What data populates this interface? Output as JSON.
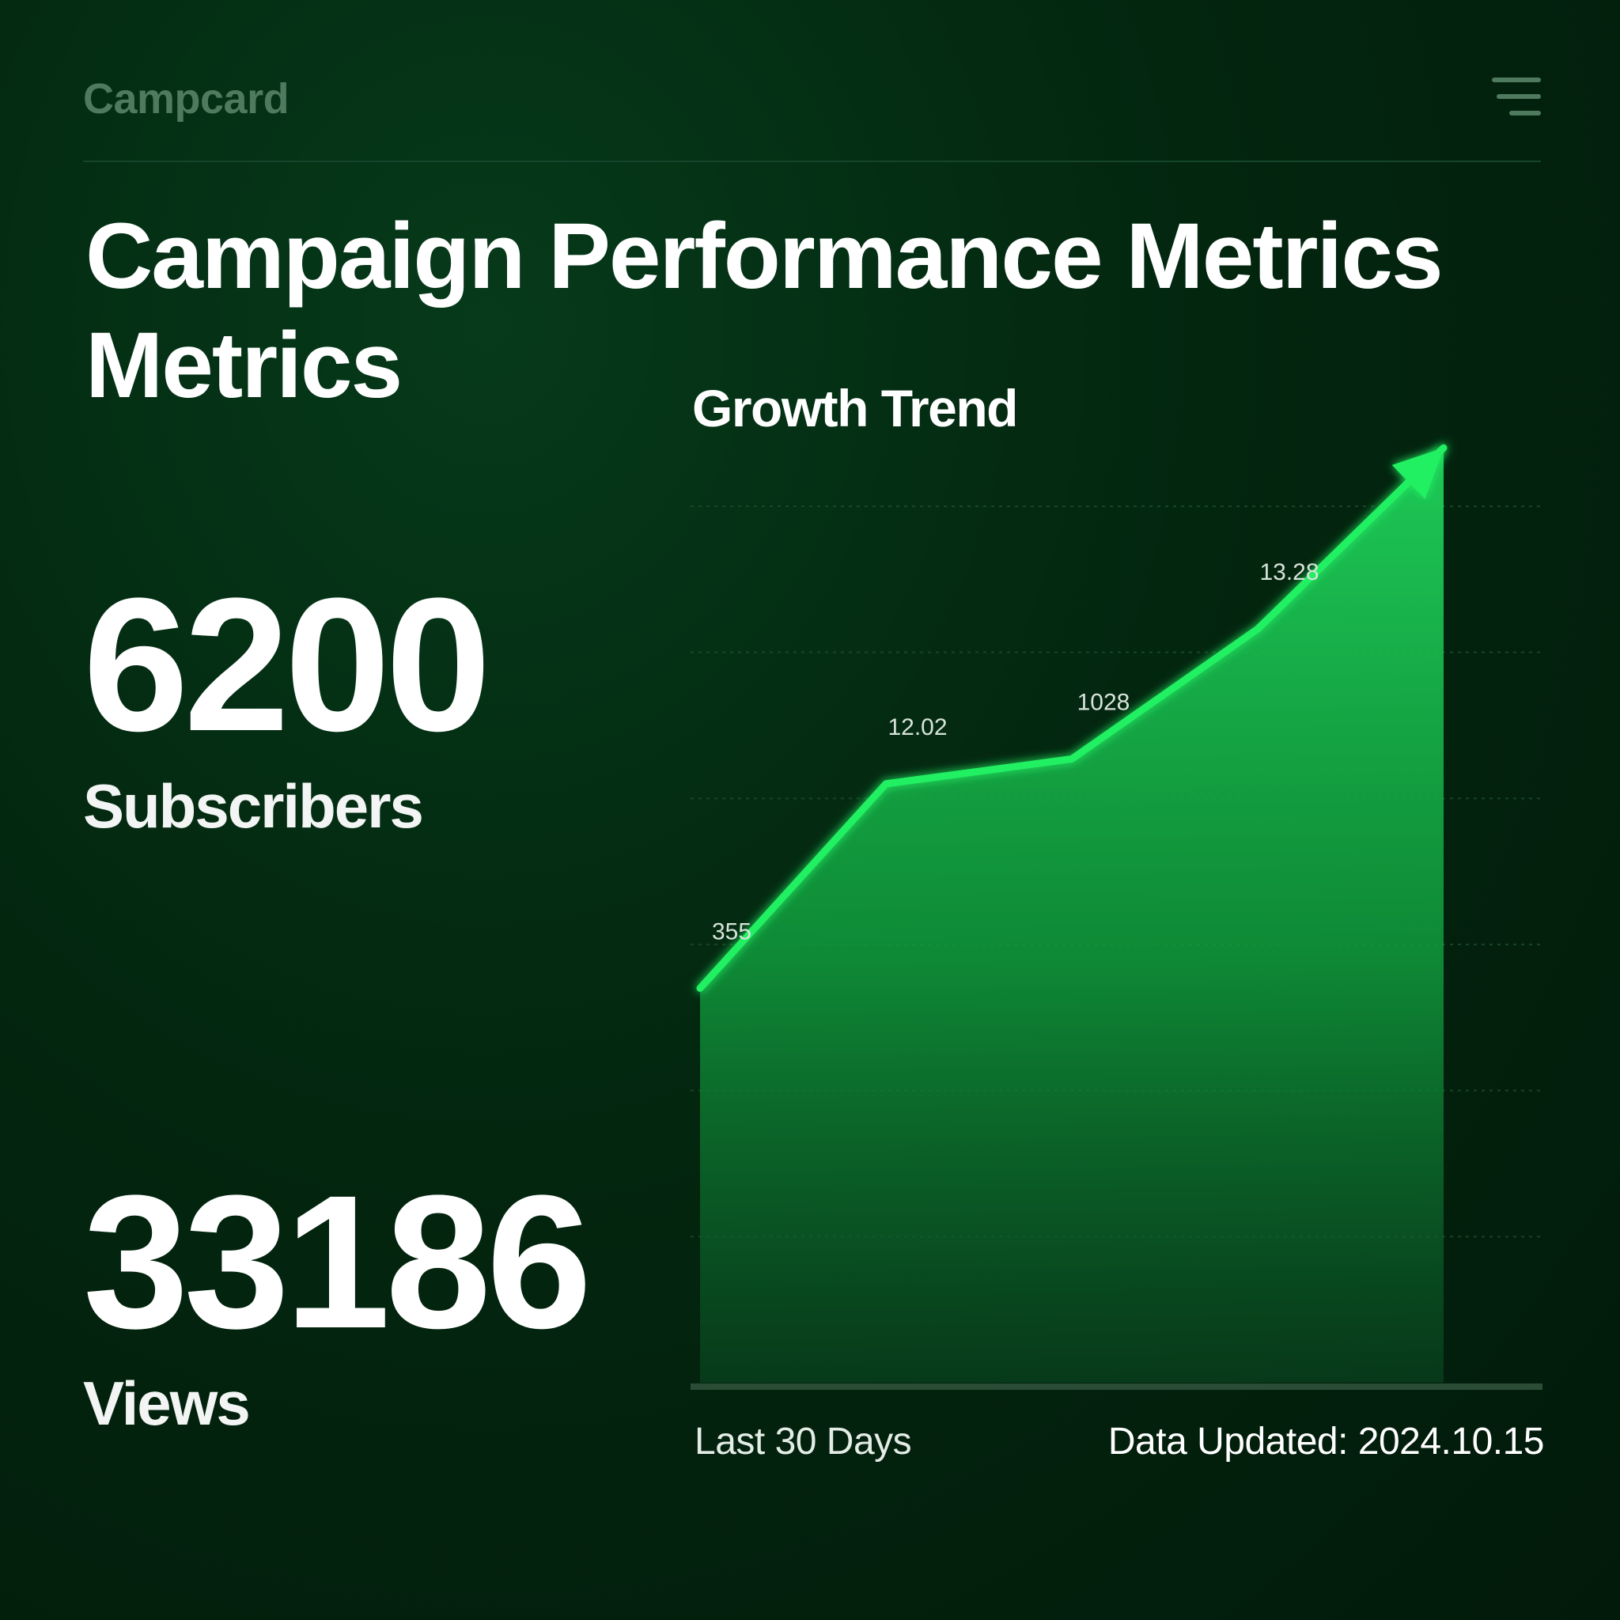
{
  "header": {
    "logo_text": "Campcard",
    "menu_icon": "hamburger-menu-icon"
  },
  "page_title": {
    "line1": "Campaign Performance Metrics",
    "line2": "Metrics"
  },
  "metrics": {
    "subscribers": {
      "value": "6200",
      "label": "Subscribers"
    },
    "views": {
      "value": "33186",
      "label": "Views"
    }
  },
  "chart_title": "Growth Trend",
  "chart_data": {
    "type": "area",
    "title": "Growth Trend",
    "xlabel": "",
    "ylabel": "",
    "grid": true,
    "ylim": [
      0,
      6
    ],
    "points": [
      {
        "x": 0,
        "y": 2.7,
        "label": "355"
      },
      {
        "x": 1,
        "y": 4.1,
        "label": "12.02"
      },
      {
        "x": 2,
        "y": 4.27,
        "label": "1028"
      },
      {
        "x": 3,
        "y": 5.16,
        "label": "13.28"
      },
      {
        "x": 4,
        "y": 6.4,
        "label": ""
      }
    ],
    "colors": {
      "line": "#22f064",
      "fill_top": "#1fd25a",
      "fill_bottom": "#0a4a22",
      "grid": "#1f4d2c",
      "baseline": "#2b4d36"
    },
    "arrow_head": true
  },
  "footer": {
    "period": "Last 30 Days",
    "updated": "Data Updated: 2024.10.15"
  }
}
